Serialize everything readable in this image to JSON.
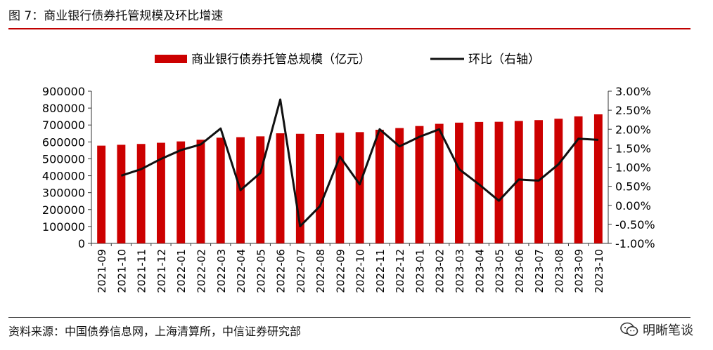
{
  "figure": {
    "title": "图 7：商业银行债券托管规模及环比增速",
    "source": "资料来源：中国债券信息网，上海清算所，中信证券研究部",
    "brand": "明晰笔谈"
  },
  "chart_data": {
    "type": "bar",
    "categories": [
      "2021-09",
      "2021-10",
      "2021-11",
      "2021-12",
      "2022-01",
      "2022-02",
      "2022-03",
      "2022-04",
      "2022-05",
      "2022-06",
      "2022-07",
      "2022-08",
      "2022-09",
      "2022-10",
      "2022-11",
      "2022-12",
      "2023-01",
      "2023-02",
      "2023-03",
      "2023-04",
      "2023-05",
      "2023-06",
      "2023-07",
      "2023-08",
      "2023-09",
      "2023-10"
    ],
    "series": [
      {
        "name": "商业银行债券托管总规模（亿元）",
        "type": "bar",
        "axis": "left",
        "color": "#cc0000",
        "values": [
          578000,
          583000,
          588000,
          595000,
          603000,
          613000,
          625000,
          628000,
          633000,
          651000,
          648000,
          647000,
          654000,
          658000,
          672000,
          682000,
          694000,
          707000,
          714000,
          718000,
          719000,
          724000,
          729000,
          737000,
          751000,
          763000
        ]
      },
      {
        "name": "环比（右轴）",
        "type": "line",
        "axis": "right",
        "color": "#000000",
        "values": [
          null,
          0.78,
          0.95,
          1.22,
          1.45,
          1.6,
          2.02,
          0.4,
          0.85,
          2.78,
          -0.55,
          -0.02,
          1.28,
          0.55,
          2.0,
          1.55,
          1.8,
          2.0,
          0.95,
          0.55,
          0.12,
          0.68,
          0.65,
          1.08,
          1.75,
          1.72
        ]
      }
    ],
    "y_left": {
      "ylim": [
        0,
        900000
      ],
      "ticks": [
        "0",
        "100000",
        "200000",
        "300000",
        "400000",
        "500000",
        "600000",
        "700000",
        "800000",
        "900000"
      ]
    },
    "y_right": {
      "ylim": [
        -1.0,
        3.0
      ],
      "unit": "%",
      "ticks": [
        "-1.00%",
        "-0.50%",
        "0.00%",
        "0.50%",
        "1.00%",
        "1.50%",
        "2.00%",
        "2.50%",
        "3.00%"
      ]
    },
    "legend_position": "top-center",
    "grid": false
  }
}
